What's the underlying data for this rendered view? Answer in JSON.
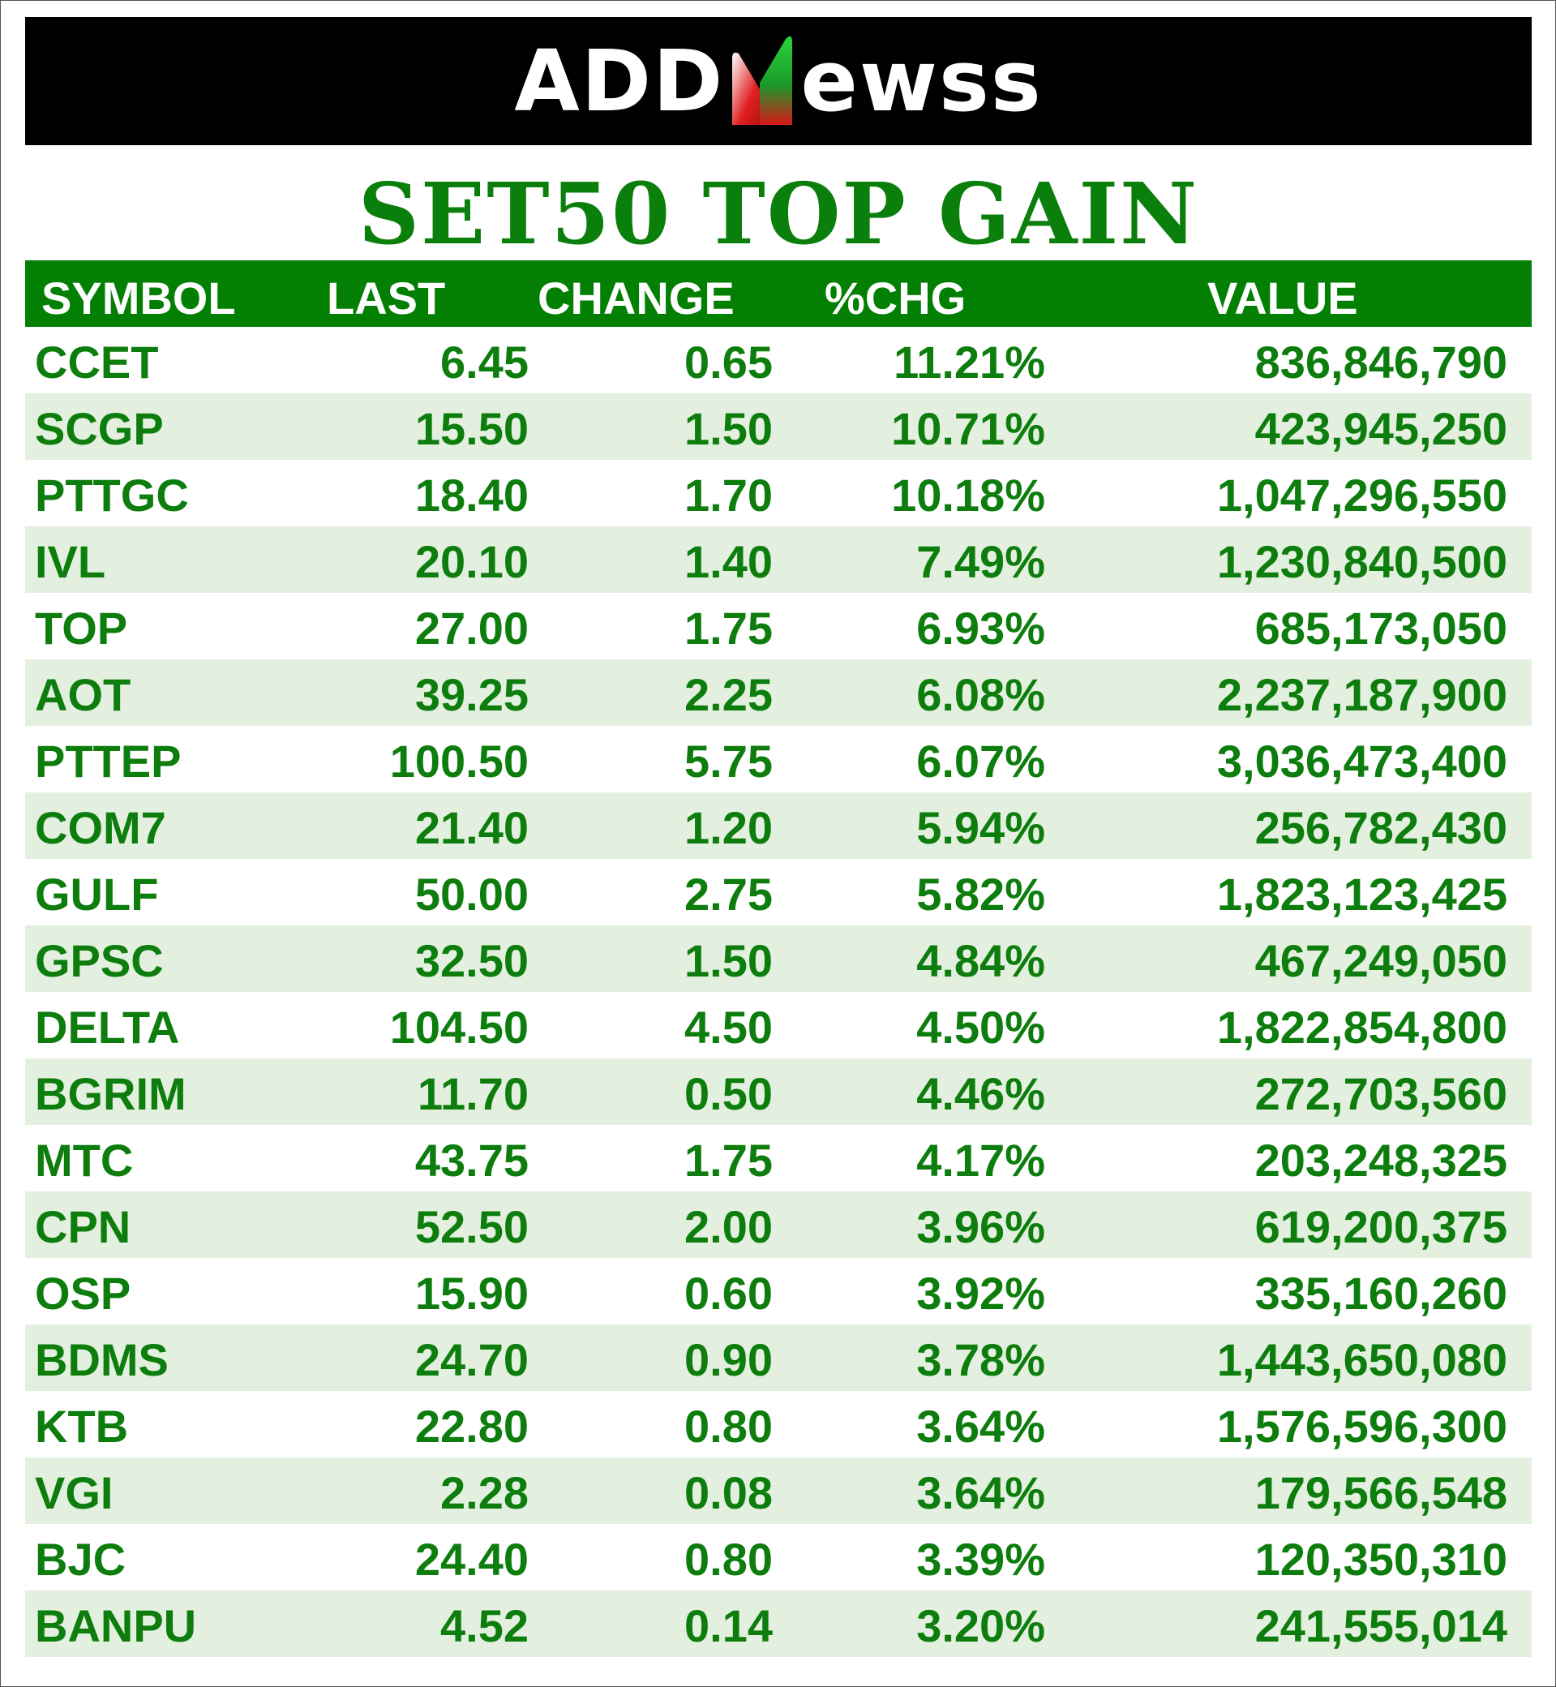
{
  "brand": {
    "prefix": "ADD",
    "accent": "N",
    "suffix": "ewss",
    "accent_gradient": [
      "#27c23a",
      "#e01a1a"
    ]
  },
  "title": "SET50 TOP GAIN",
  "colors": {
    "header_bg": "#038003",
    "text_green": "#0d7d0d",
    "stripe": "#e3f0df"
  },
  "table": {
    "headers": [
      "SYMBOL",
      "LAST",
      "CHANGE",
      "%CHG",
      "VALUE"
    ],
    "rows": [
      [
        "CCET",
        "6.45",
        "0.65",
        "11.21%",
        "836,846,790"
      ],
      [
        "SCGP",
        "15.50",
        "1.50",
        "10.71%",
        "423,945,250"
      ],
      [
        "PTTGC",
        "18.40",
        "1.70",
        "10.18%",
        "1,047,296,550"
      ],
      [
        "IVL",
        "20.10",
        "1.40",
        "7.49%",
        "1,230,840,500"
      ],
      [
        "TOP",
        "27.00",
        "1.75",
        "6.93%",
        "685,173,050"
      ],
      [
        "AOT",
        "39.25",
        "2.25",
        "6.08%",
        "2,237,187,900"
      ],
      [
        "PTTEP",
        "100.50",
        "5.75",
        "6.07%",
        "3,036,473,400"
      ],
      [
        "COM7",
        "21.40",
        "1.20",
        "5.94%",
        "256,782,430"
      ],
      [
        "GULF",
        "50.00",
        "2.75",
        "5.82%",
        "1,823,123,425"
      ],
      [
        "GPSC",
        "32.50",
        "1.50",
        "4.84%",
        "467,249,050"
      ],
      [
        "DELTA",
        "104.50",
        "4.50",
        "4.50%",
        "1,822,854,800"
      ],
      [
        "BGRIM",
        "11.70",
        "0.50",
        "4.46%",
        "272,703,560"
      ],
      [
        "MTC",
        "43.75",
        "1.75",
        "4.17%",
        "203,248,325"
      ],
      [
        "CPN",
        "52.50",
        "2.00",
        "3.96%",
        "619,200,375"
      ],
      [
        "OSP",
        "15.90",
        "0.60",
        "3.92%",
        "335,160,260"
      ],
      [
        "BDMS",
        "24.70",
        "0.90",
        "3.78%",
        "1,443,650,080"
      ],
      [
        "KTB",
        "22.80",
        "0.80",
        "3.64%",
        "1,576,596,300"
      ],
      [
        "VGI",
        "2.28",
        "0.08",
        "3.64%",
        "179,566,548"
      ],
      [
        "BJC",
        "24.40",
        "0.80",
        "3.39%",
        "120,350,310"
      ],
      [
        "BANPU",
        "4.52",
        "0.14",
        "3.20%",
        "241,555,014"
      ]
    ]
  }
}
